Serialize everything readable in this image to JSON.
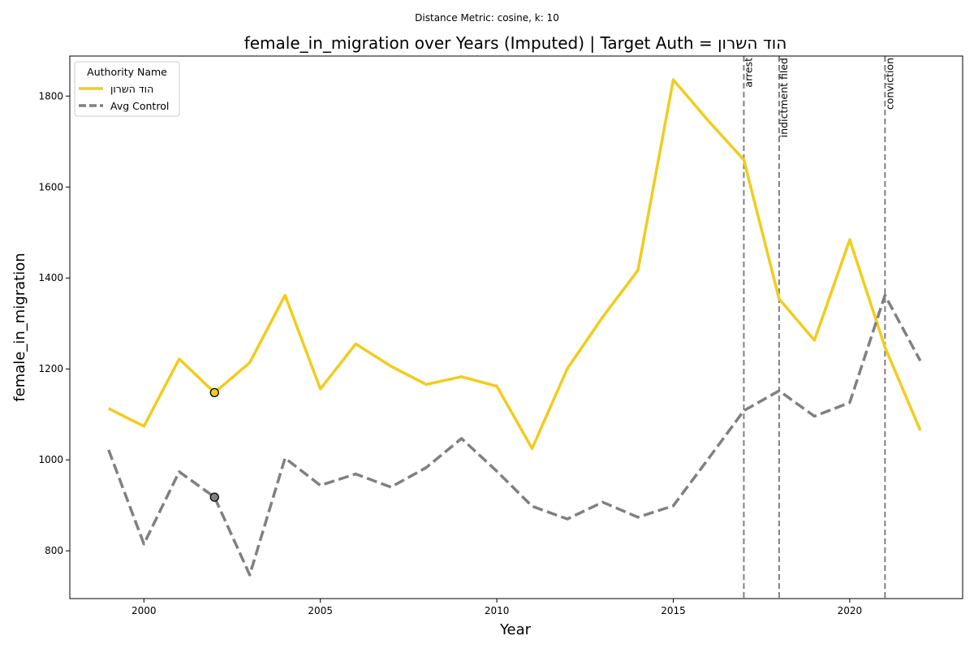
{
  "suptitle": "Distance Metric: cosine, k: 10",
  "chart_data": {
    "type": "line",
    "title": "female_in_migration over Years (Imputed) | Target Auth = הוד השרון",
    "xlabel": "Year",
    "ylabel": "female_in_migration",
    "xlim": [
      1997.9,
      2023.2
    ],
    "ylim": [
      695,
      1888
    ],
    "xticks": [
      2000,
      2005,
      2010,
      2015,
      2020
    ],
    "yticks": [
      800,
      1000,
      1200,
      1400,
      1600,
      1800
    ],
    "x": [
      1999,
      2000,
      2001,
      2002,
      2003,
      2004,
      2005,
      2006,
      2007,
      2008,
      2009,
      2010,
      2011,
      2012,
      2013,
      2014,
      2015,
      2016,
      2017,
      2018,
      2019,
      2020,
      2021,
      2022
    ],
    "series": [
      {
        "name": "הוד השרון",
        "color": "#f2cc1d",
        "style": "solid",
        "values": [
          1113,
          1074,
          1222,
          1148,
          1214,
          1362,
          1156,
          1255,
          1206,
          1166,
          1183,
          1162,
          1025,
          1201,
          1314,
          1417,
          1836,
          1745,
          1660,
          1354,
          1263,
          1484,
          1248,
          1065
        ]
      },
      {
        "name": "Avg Control",
        "color": "#808080",
        "style": "dashed",
        "values": [
          1022,
          815,
          974,
          918,
          747,
          1004,
          944,
          969,
          940,
          983,
          1047,
          975,
          898,
          870,
          907,
          874,
          899,
          1003,
          1108,
          1152,
          1096,
          1126,
          1362,
          1218
        ]
      }
    ],
    "imputed_points": [
      {
        "series": "הוד השרון",
        "x": 2002,
        "y": 1148
      },
      {
        "series": "Avg Control",
        "x": 2002,
        "y": 918
      }
    ],
    "events": [
      {
        "x": 2017,
        "label": "arrest"
      },
      {
        "x": 2018,
        "label": "indictment filed"
      },
      {
        "x": 2021,
        "label": "conviction"
      }
    ],
    "legend": {
      "title": "Authority Name",
      "placement": "top-left"
    },
    "grid": false
  }
}
